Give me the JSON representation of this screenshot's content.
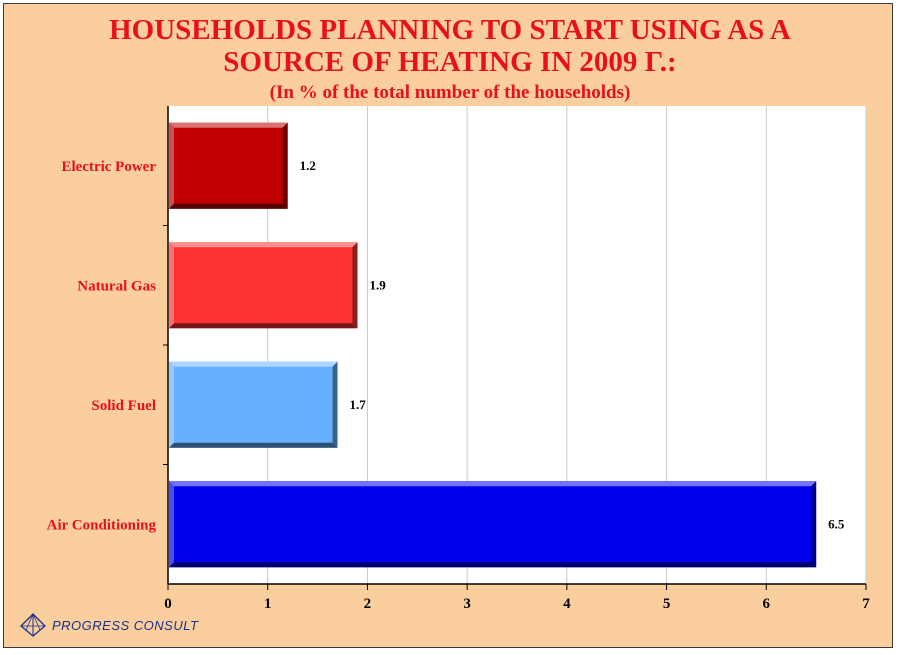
{
  "chart_data": {
    "type": "bar",
    "orientation": "horizontal",
    "title_lines": [
      "HOUSEHOLDS PLANNING TO START USING AS A",
      "SOURCE OF HEATING IN 2009 Г.:"
    ],
    "subtitle": "(In % of the total number of the households)",
    "categories": [
      "Electric Power",
      "Natural Gas",
      "Solid Fuel",
      "Air Conditioning"
    ],
    "values": [
      1.2,
      1.9,
      1.7,
      6.5
    ],
    "value_labels": [
      "1.2",
      "1.9",
      "1.7",
      "6.5"
    ],
    "x_ticks": [
      0,
      1,
      2,
      3,
      4,
      5,
      6,
      7
    ],
    "xlim": [
      0,
      7
    ],
    "grid": true,
    "xlabel": "",
    "ylabel": "",
    "bar_colors": {
      "Electric Power": "#c00000",
      "Natural Gas": "#ff3333",
      "Solid Fuel": "#66b0ff",
      "Air Conditioning": "#0000ee"
    },
    "label_color": "#e8101a",
    "background_color": "#fbcf9d",
    "plot_background": "#ffffff"
  },
  "logo": {
    "text": "PROGRESS CONSULT",
    "icon": "pyramid-logo-icon"
  }
}
